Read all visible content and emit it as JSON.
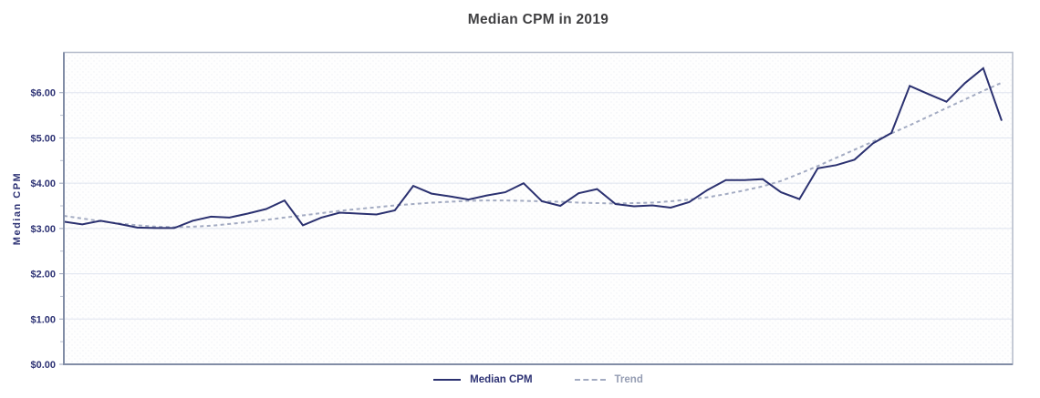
{
  "title": "Median CPM in 2019",
  "y_axis": {
    "label": "Median CPM",
    "tick_labels": [
      "$0.00",
      "$1.00",
      "$2.00",
      "$3.00",
      "$4.00",
      "$5.00",
      "$6.00"
    ]
  },
  "legend": [
    {
      "label": "Median CPM",
      "style": "solid"
    },
    {
      "label": "Trend",
      "style": "dashed"
    }
  ],
  "colors": {
    "series_line": "#2b3170",
    "trend_line": "#a3abc2",
    "gridline": "#dfe4ef",
    "plot_border": "#b3bac9",
    "axis_line": "#828da6",
    "tick_text": "#2d3274",
    "title_text": "#3f3f41"
  },
  "chart_data": {
    "type": "line",
    "title": "Median CPM in 2019",
    "xlabel": "",
    "ylabel": "Median CPM",
    "x_unit": "week of 2019",
    "x": [
      1,
      2,
      3,
      4,
      5,
      6,
      7,
      8,
      9,
      10,
      11,
      12,
      13,
      14,
      15,
      16,
      17,
      18,
      19,
      20,
      21,
      22,
      23,
      24,
      25,
      26,
      27,
      28,
      29,
      30,
      31,
      32,
      33,
      34,
      35,
      36,
      37,
      38,
      39,
      40,
      41,
      42,
      43,
      44,
      45,
      46,
      47,
      48,
      49,
      50,
      51,
      52
    ],
    "ylim": [
      0,
      6.89
    ],
    "y_ticks": [
      0,
      1,
      2,
      3,
      4,
      5,
      6
    ],
    "grid": "horizontal",
    "legend_position": "bottom",
    "series": [
      {
        "name": "Median CPM",
        "style": "solid",
        "values": [
          3.15,
          3.09,
          3.17,
          3.1,
          3.02,
          3.01,
          3.01,
          3.17,
          3.26,
          3.24,
          3.33,
          3.43,
          3.62,
          3.07,
          3.24,
          3.35,
          3.33,
          3.31,
          3.4,
          3.94,
          3.77,
          3.71,
          3.64,
          3.73,
          3.8,
          4.0,
          3.6,
          3.5,
          3.78,
          3.87,
          3.54,
          3.49,
          3.51,
          3.46,
          3.58,
          3.85,
          4.07,
          4.07,
          4.09,
          3.8,
          3.65,
          4.33,
          4.4,
          4.52,
          4.88,
          5.11,
          6.15,
          5.97,
          5.8,
          6.21,
          6.54,
          5.38
        ]
      },
      {
        "name": "Trend",
        "style": "dashed",
        "values": [
          3.28,
          3.22,
          3.16,
          3.11,
          3.07,
          3.04,
          3.03,
          3.04,
          3.06,
          3.1,
          3.14,
          3.19,
          3.24,
          3.29,
          3.34,
          3.39,
          3.43,
          3.47,
          3.51,
          3.54,
          3.57,
          3.59,
          3.61,
          3.62,
          3.62,
          3.61,
          3.6,
          3.59,
          3.57,
          3.56,
          3.55,
          3.56,
          3.57,
          3.6,
          3.64,
          3.69,
          3.76,
          3.84,
          3.93,
          4.05,
          4.21,
          4.38,
          4.56,
          4.74,
          4.92,
          5.1,
          5.28,
          5.47,
          5.66,
          5.85,
          6.04,
          6.22
        ]
      }
    ]
  }
}
